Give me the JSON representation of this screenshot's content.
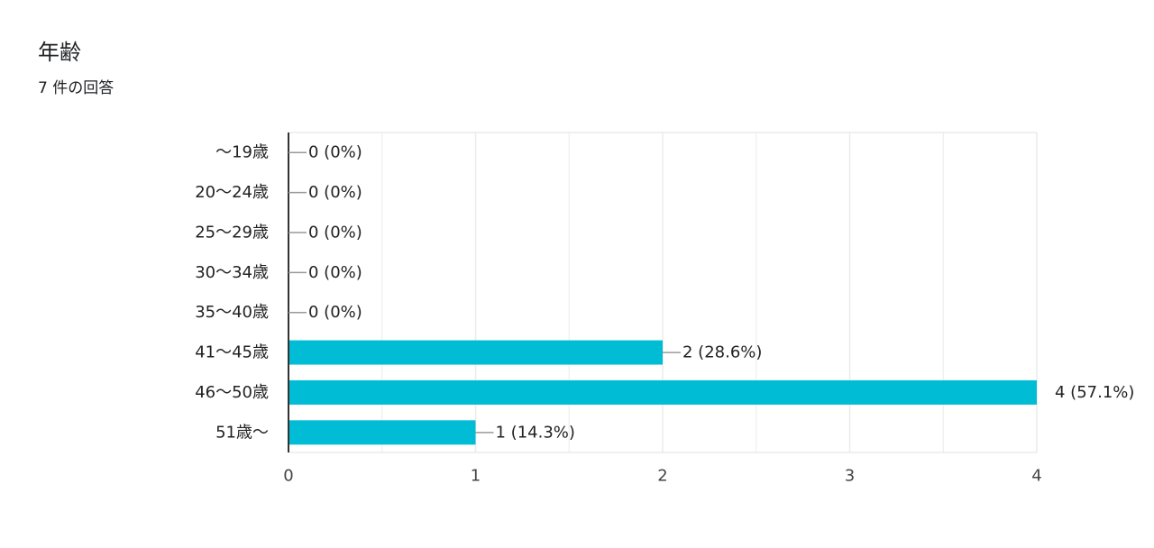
{
  "header": {
    "title": "年齢",
    "response_count": "7 件の回答"
  },
  "colors": {
    "bar": "#00bcd4",
    "axis": "#333333",
    "grid": "#ebebeb",
    "leader": "#999999"
  },
  "chart_data": {
    "type": "bar",
    "orientation": "horizontal",
    "categories": [
      "～19歳",
      "20～24歳",
      "25～29歳",
      "30～34歳",
      "35～40歳",
      "41～45歳",
      "46～50歳",
      "51歳～"
    ],
    "values": [
      0,
      0,
      0,
      0,
      0,
      2,
      4,
      1
    ],
    "data_labels": [
      "0 (0%)",
      "0 (0%)",
      "0 (0%)",
      "0 (0%)",
      "0 (0%)",
      "2 (28.6%)",
      "4 (57.1%)",
      "1 (14.3%)"
    ],
    "x_ticks": [
      "0",
      "1",
      "2",
      "3",
      "4"
    ],
    "xlim": [
      0,
      4
    ],
    "grid": true,
    "legend": "none"
  }
}
